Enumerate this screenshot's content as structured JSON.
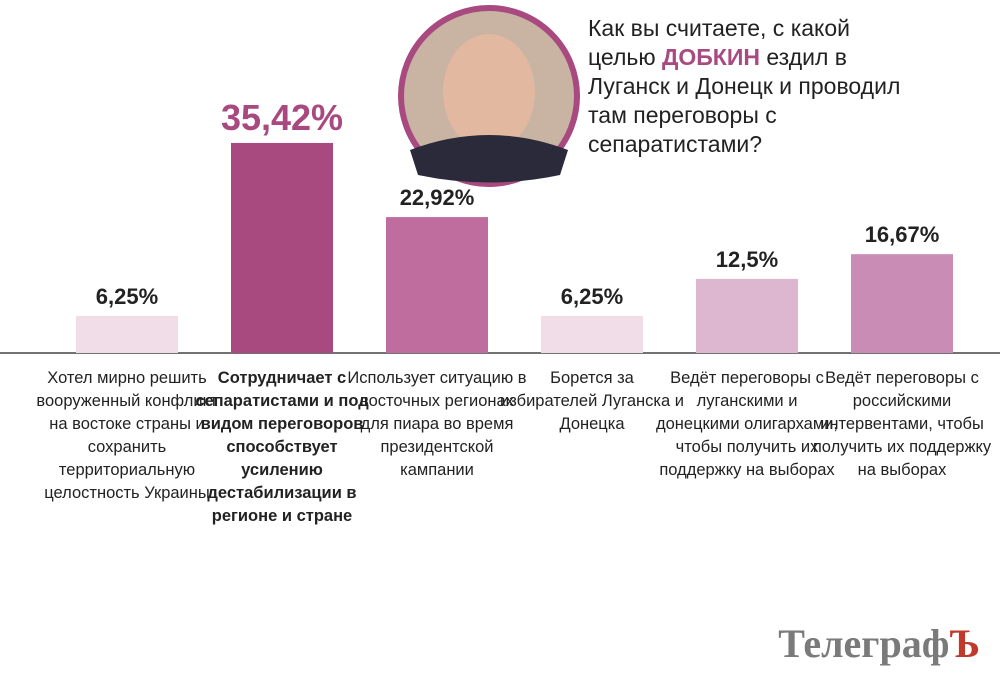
{
  "chart_data": {
    "type": "bar",
    "title_parts": [
      "Как вы считаете, с какой целью",
      "ДОБКИН",
      "ездил в Луганск и Донецк и проводил там переговоры с сепаратистами?"
    ],
    "categories": [
      "Хотел мирно решить вооруженный конфликт на востоке страны и сохранить территориальную целостность Украины",
      "Сотрудничает с сепаратистами и под видом переговоров способствует усилению дестабилизации в регионе и стране",
      "Использует ситуацию в восточных регионах для пиара во время президентской кампании",
      "Борется за избирателей Луганска и Донецка",
      "Ведёт переговоры с луганскими и донецкими олигархами, чтобы получить их поддержку на выборах",
      "Ведёт переговоры с российскими интервентами, чтобы получить их поддержку на выборах"
    ],
    "values": [
      6.25,
      35.42,
      22.92,
      6.25,
      12.5,
      16.67
    ],
    "value_labels": [
      "6,25%",
      "35,42%",
      "22,92%",
      "6,25%",
      "12,5%",
      "16,67%"
    ],
    "colors": [
      "#f0dde8",
      "#a8497f",
      "#bf6d9e",
      "#f0dde8",
      "#ddb7cf",
      "#c98db5"
    ],
    "source": "Телеграф",
    "source_mark": "Ъ"
  }
}
